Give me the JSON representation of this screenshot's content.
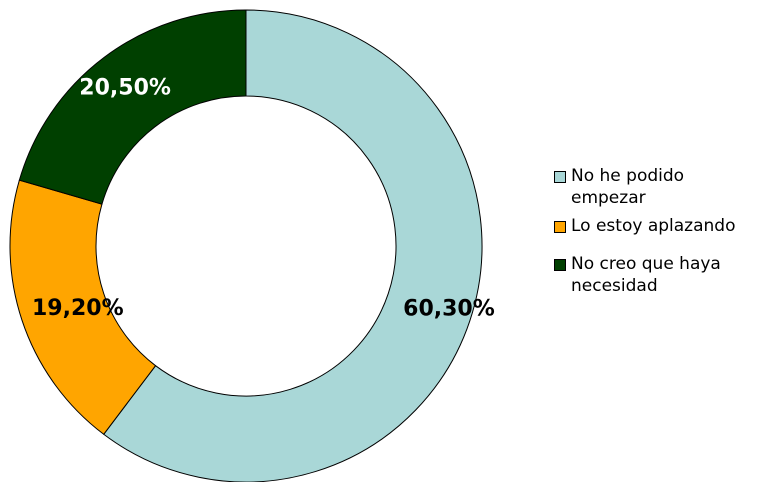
{
  "chart_data": {
    "type": "pie",
    "style": "donut",
    "categories": [
      "No he podido empezar",
      "Lo estoy aplazando",
      "No creo que haya necesidad"
    ],
    "values": [
      60.3,
      19.2,
      20.5
    ],
    "value_labels": [
      "60,30%",
      "19,20%",
      "20,50%"
    ],
    "colors": [
      "#a9d7d7",
      "#ffa500",
      "#004000"
    ],
    "label_colors": [
      "#000000",
      "#000000",
      "#ffffff"
    ],
    "start": "12 o'clock",
    "direction": "clockwise",
    "legend_position": "right",
    "title": ""
  },
  "legend": {
    "items": [
      {
        "label": "No he podido empezar",
        "color": "#a9d7d7"
      },
      {
        "label": "Lo estoy aplazando",
        "color": "#ffa500"
      },
      {
        "label": "No creo que haya necesidad",
        "color": "#004000"
      }
    ]
  }
}
